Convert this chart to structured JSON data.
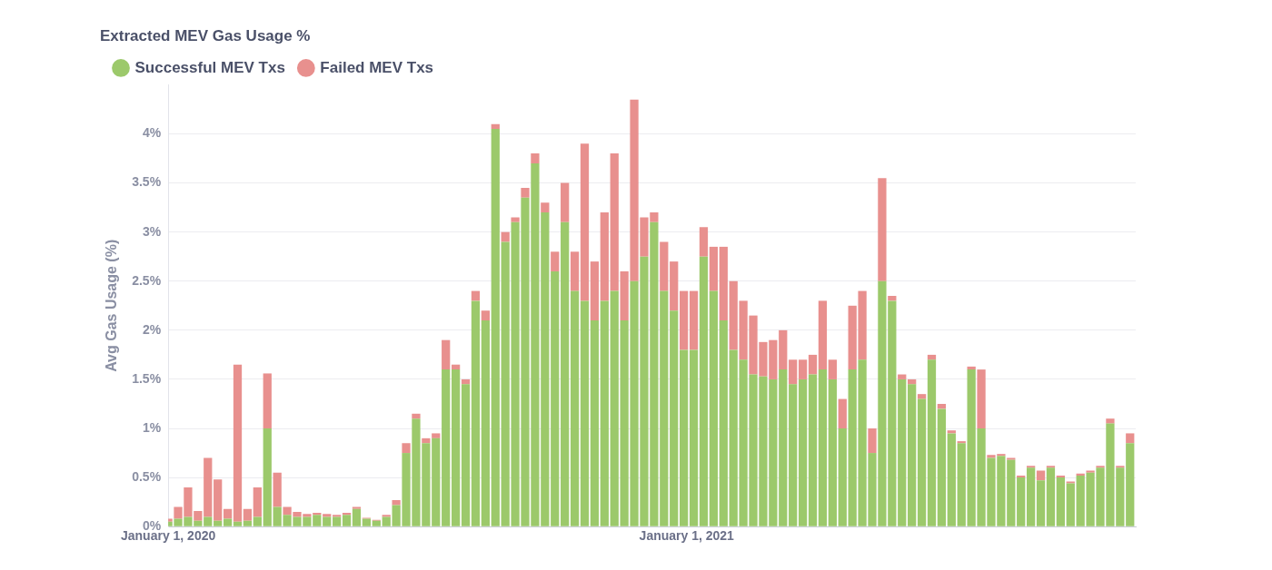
{
  "chart_data": {
    "type": "bar",
    "stacked": true,
    "title": "Extracted MEV Gas Usage %",
    "ylabel": "Avg Gas Usage (%)",
    "x": [
      "2020-01-01",
      "2020-01-08",
      "2020-01-15",
      "2020-01-22",
      "2020-01-29",
      "2020-02-05",
      "2020-02-12",
      "2020-02-19",
      "2020-02-26",
      "2020-03-04",
      "2020-03-11",
      "2020-03-18",
      "2020-03-25",
      "2020-04-01",
      "2020-04-08",
      "2020-04-15",
      "2020-04-22",
      "2020-04-29",
      "2020-05-06",
      "2020-05-13",
      "2020-05-20",
      "2020-05-27",
      "2020-06-03",
      "2020-06-10",
      "2020-06-17",
      "2020-06-24",
      "2020-07-01",
      "2020-07-08",
      "2020-07-15",
      "2020-07-22",
      "2020-07-29",
      "2020-08-05",
      "2020-08-12",
      "2020-08-19",
      "2020-08-26",
      "2020-09-02",
      "2020-09-09",
      "2020-09-16",
      "2020-09-23",
      "2020-09-30",
      "2020-10-07",
      "2020-10-14",
      "2020-10-21",
      "2020-10-28",
      "2020-11-04",
      "2020-11-11",
      "2020-11-18",
      "2020-11-25",
      "2020-12-02",
      "2020-12-09",
      "2020-12-16",
      "2020-12-23",
      "2020-12-30",
      "2021-01-06",
      "2021-01-13",
      "2021-01-20",
      "2021-01-27",
      "2021-02-03",
      "2021-02-10",
      "2021-02-17",
      "2021-02-24",
      "2021-03-03",
      "2021-03-10",
      "2021-03-17",
      "2021-03-24",
      "2021-03-31",
      "2021-04-07",
      "2021-04-14",
      "2021-04-21",
      "2021-04-28",
      "2021-05-05",
      "2021-05-12",
      "2021-05-19",
      "2021-05-26",
      "2021-06-02",
      "2021-06-09",
      "2021-06-16",
      "2021-06-23",
      "2021-06-30",
      "2021-07-07",
      "2021-07-14",
      "2021-07-21",
      "2021-07-28",
      "2021-08-04",
      "2021-08-11",
      "2021-08-18",
      "2021-08-25",
      "2021-09-01",
      "2021-09-08",
      "2021-09-15",
      "2021-09-22",
      "2021-09-29",
      "2021-10-06",
      "2021-10-13",
      "2021-10-20",
      "2021-10-27",
      "2021-11-03",
      "2021-11-10"
    ],
    "series": [
      {
        "name": "Successful MEV Txs",
        "color": "#9cc96b",
        "values": [
          0.05,
          0.08,
          0.1,
          0.06,
          0.1,
          0.06,
          0.08,
          0.05,
          0.06,
          0.1,
          1.0,
          0.2,
          0.12,
          0.1,
          0.1,
          0.12,
          0.1,
          0.1,
          0.12,
          0.18,
          0.08,
          0.06,
          0.1,
          0.22,
          0.75,
          1.1,
          0.85,
          0.9,
          1.6,
          1.6,
          1.45,
          2.3,
          2.1,
          4.05,
          2.9,
          3.1,
          3.35,
          3.7,
          3.2,
          2.6,
          3.1,
          2.4,
          2.3,
          2.1,
          2.3,
          2.4,
          2.1,
          2.5,
          2.75,
          3.1,
          2.4,
          2.2,
          1.8,
          1.8,
          2.75,
          2.4,
          2.1,
          1.8,
          1.7,
          1.55,
          1.53,
          1.5,
          1.6,
          1.45,
          1.5,
          1.55,
          1.6,
          1.5,
          1.0,
          1.6,
          1.7,
          0.75,
          2.5,
          2.3,
          1.5,
          1.45,
          1.3,
          1.7,
          1.2,
          0.95,
          0.85,
          1.6,
          1.0,
          0.7,
          0.72,
          0.68,
          0.5,
          0.6,
          0.47,
          0.6,
          0.5,
          0.44,
          0.52,
          0.55,
          0.6,
          1.05,
          0.6,
          0.85
        ]
      },
      {
        "name": "Failed MEV Txs",
        "color": "#e8908e",
        "values": [
          0.03,
          0.12,
          0.3,
          0.1,
          0.6,
          0.42,
          0.1,
          1.6,
          0.12,
          0.3,
          0.56,
          0.35,
          0.08,
          0.05,
          0.03,
          0.02,
          0.03,
          0.02,
          0.02,
          0.02,
          0.01,
          0.01,
          0.02,
          0.05,
          0.1,
          0.05,
          0.05,
          0.05,
          0.3,
          0.05,
          0.05,
          0.1,
          0.1,
          0.05,
          0.1,
          0.05,
          0.1,
          0.1,
          0.1,
          0.2,
          0.4,
          0.4,
          1.6,
          0.6,
          0.9,
          1.4,
          0.5,
          1.85,
          0.4,
          0.1,
          0.5,
          0.5,
          0.6,
          0.6,
          0.3,
          0.45,
          0.75,
          0.7,
          0.6,
          0.6,
          0.35,
          0.4,
          0.4,
          0.25,
          0.2,
          0.2,
          0.7,
          0.2,
          0.3,
          0.65,
          0.7,
          0.25,
          1.05,
          0.05,
          0.05,
          0.05,
          0.05,
          0.05,
          0.05,
          0.03,
          0.02,
          0.03,
          0.6,
          0.03,
          0.02,
          0.02,
          0.02,
          0.02,
          0.1,
          0.02,
          0.02,
          0.02,
          0.02,
          0.02,
          0.02,
          0.05,
          0.02,
          0.1
        ]
      }
    ],
    "xlim": [
      "2020-01-01",
      "2021-11-14"
    ],
    "xticks": [
      {
        "value": "2020-01-01",
        "label": "January 1, 2020"
      },
      {
        "value": "2021-01-01",
        "label": "January 1, 2021"
      }
    ],
    "ylim": [
      0,
      4.5
    ],
    "yticks": [
      {
        "value": 0,
        "label": "0%"
      },
      {
        "value": 0.5,
        "label": "0.5%"
      },
      {
        "value": 1,
        "label": "1%"
      },
      {
        "value": 1.5,
        "label": "1.5%"
      },
      {
        "value": 2,
        "label": "2%"
      },
      {
        "value": 2.5,
        "label": "2.5%"
      },
      {
        "value": 3,
        "label": "3%"
      },
      {
        "value": 3.5,
        "label": "3.5%"
      },
      {
        "value": 4,
        "label": "4%"
      }
    ],
    "grid": "y",
    "legend": "top left"
  }
}
